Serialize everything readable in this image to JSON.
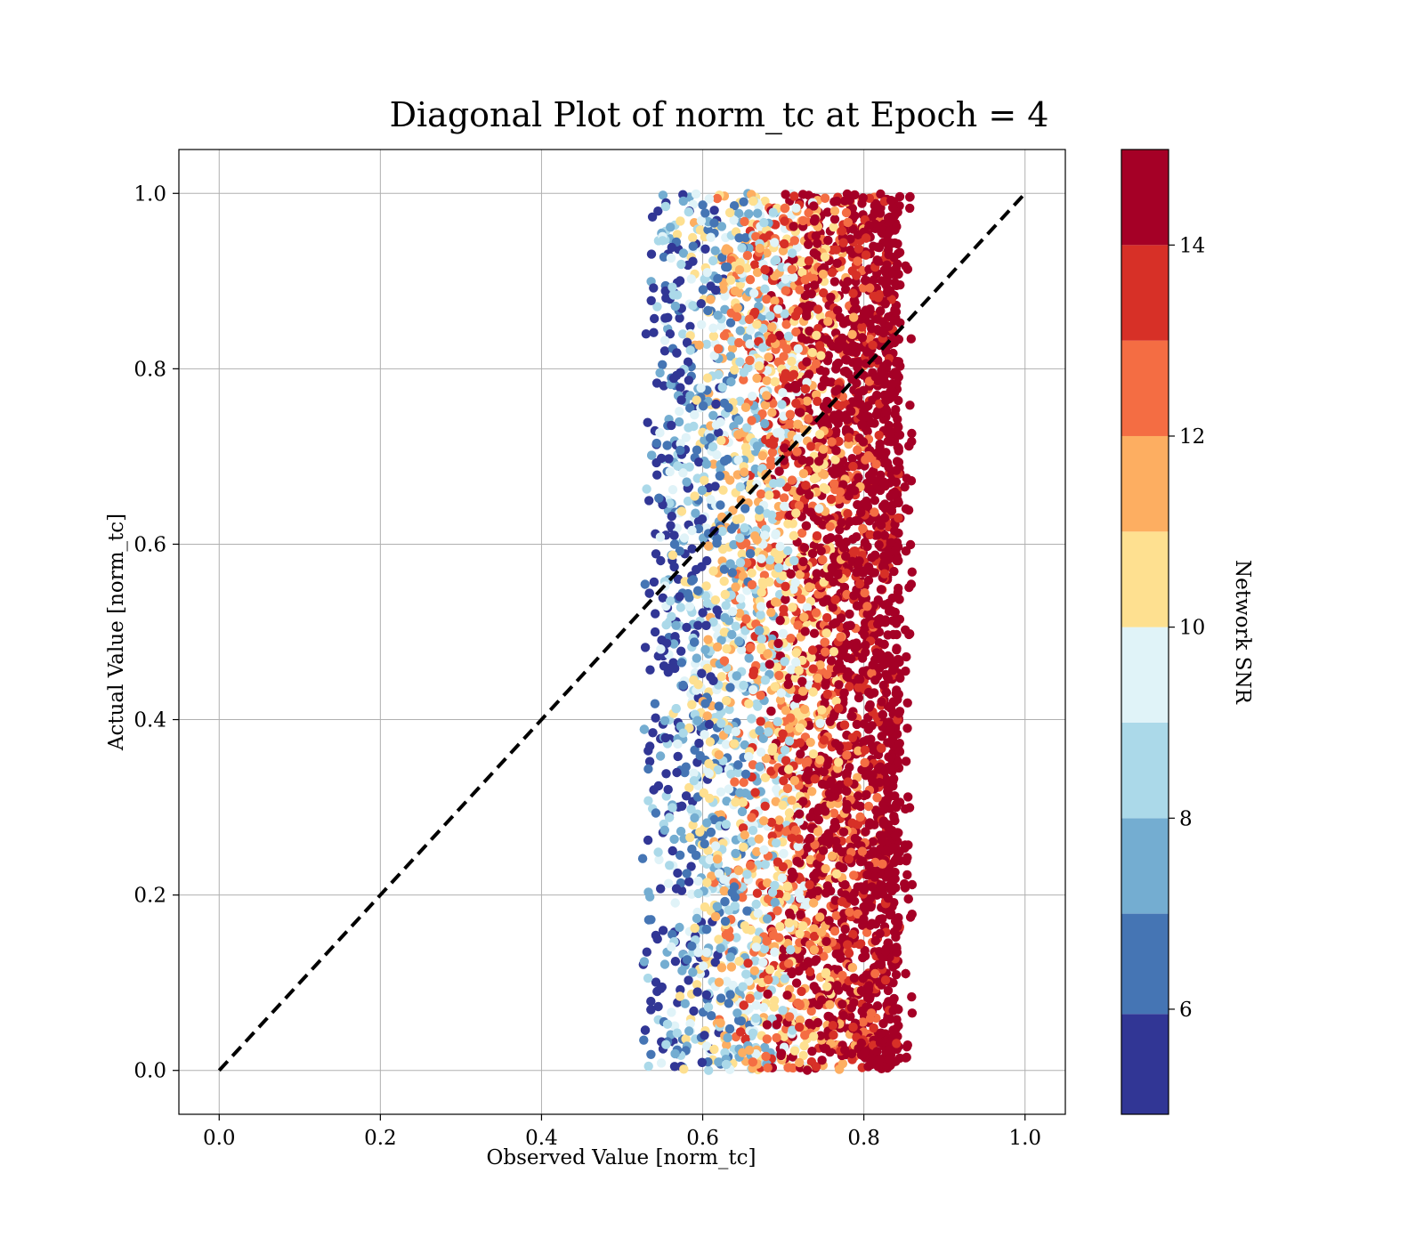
{
  "chart_data": {
    "type": "scatter",
    "title": "Diagonal Plot of norm_tc at Epoch = 4",
    "xlabel": "Observed Value [norm_tc]",
    "ylabel": "Actual Value [norm_tc]",
    "xlim": [
      -0.05,
      1.05
    ],
    "ylim": [
      -0.05,
      1.05
    ],
    "xticks": [
      "0.0",
      "0.2",
      "0.4",
      "0.6",
      "0.8",
      "1.0"
    ],
    "yticks": [
      "0.0",
      "0.2",
      "0.4",
      "0.6",
      "0.8",
      "1.0"
    ],
    "grid": true,
    "reference_line": {
      "style": "dashed",
      "color": "#000000",
      "from": [
        0,
        0
      ],
      "to": [
        1,
        1
      ]
    },
    "scatter_summary": {
      "x_range": [
        0.51,
        0.86
      ],
      "y_range": [
        0.0,
        1.0
      ],
      "trend": "color (network SNR) increases with observed value; low-SNR points near x≈0.52–0.56, high-SNR points concentrated at x≈0.70–0.85"
    },
    "colorbar": {
      "label": "Network SNR",
      "range": [
        4.9,
        15.0
      ],
      "boundaries": [
        4.9,
        5.95,
        7.0,
        8.0,
        9.0,
        10.0,
        11.0,
        12.0,
        13.0,
        14.0,
        15.0
      ],
      "colors": [
        "#313695",
        "#4575b4",
        "#74add1",
        "#abd9e9",
        "#e0f3f8",
        "#fee090",
        "#fdae61",
        "#f46d43",
        "#d73027",
        "#a50026"
      ],
      "ticks": [
        6,
        8,
        10,
        12,
        14
      ],
      "tick_labels": [
        "6",
        "8",
        "10",
        "12",
        "14"
      ]
    }
  }
}
